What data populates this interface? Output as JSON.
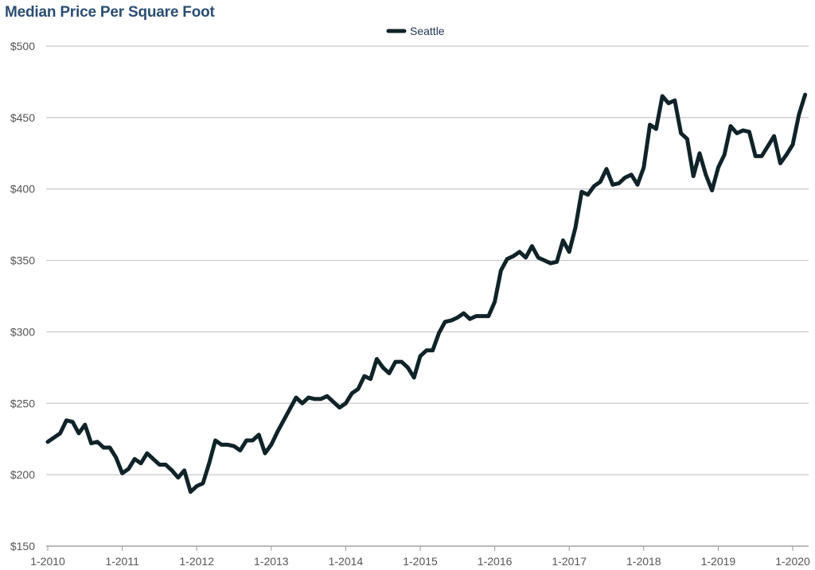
{
  "chart_data": {
    "type": "line",
    "title": "Median Price Per Square Foot",
    "xlabel": "",
    "ylabel": "",
    "ylim": [
      150,
      500
    ],
    "y_ticks": [
      "$150",
      "$200",
      "$250",
      "$300",
      "$350",
      "$400",
      "$450",
      "$500"
    ],
    "y_tick_values": [
      150,
      200,
      250,
      300,
      350,
      400,
      450,
      500
    ],
    "x_ticks": [
      "1-2010",
      "1-2011",
      "1-2012",
      "1-2013",
      "1-2014",
      "1-2015",
      "1-2016",
      "1-2017",
      "1-2018",
      "1-2019",
      "1-2020"
    ],
    "grid": true,
    "legend_position": "top-center",
    "series": [
      {
        "name": "Seattle",
        "color": "#0f2329",
        "x_start": "1-2010",
        "interval": "month",
        "values": [
          223,
          226,
          229,
          238,
          237,
          229,
          235,
          222,
          223,
          219,
          219,
          212,
          201,
          204,
          211,
          208,
          215,
          211,
          207,
          207,
          203,
          198,
          203,
          188,
          192,
          194,
          208,
          224,
          221,
          221,
          220,
          217,
          224,
          224,
          228,
          215,
          221,
          230,
          238,
          246,
          254,
          250,
          254,
          253,
          253,
          255,
          251,
          247,
          250,
          257,
          260,
          269,
          267,
          281,
          275,
          271,
          279,
          279,
          275,
          268,
          283,
          287,
          287,
          299,
          307,
          308,
          310,
          313,
          309,
          311,
          311,
          311,
          321,
          343,
          351,
          353,
          356,
          352,
          360,
          352,
          350,
          348,
          349,
          364,
          356,
          373,
          398,
          396,
          402,
          405,
          414,
          403,
          404,
          408,
          410,
          403,
          415,
          445,
          442,
          465,
          460,
          462,
          439,
          435,
          409,
          425,
          410,
          399,
          415,
          424,
          444,
          439,
          441,
          440,
          423,
          423,
          430,
          437,
          418,
          424,
          431,
          452,
          466
        ]
      }
    ]
  }
}
